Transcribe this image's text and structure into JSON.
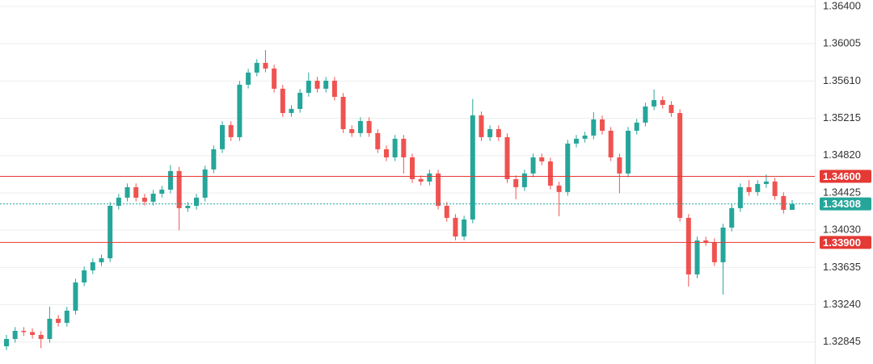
{
  "chart_data": {
    "type": "candlestick",
    "ylim": [
      1.32612,
      1.36468
    ],
    "yticks": [
      {
        "value": 1.364,
        "label": "1.36400"
      },
      1.36005,
      {
        "value": 1.3561,
        "label": "1.35610"
      },
      1.35215,
      {
        "value": 1.3482,
        "label": "1.34820"
      },
      1.34425,
      {
        "value": 1.3403,
        "label": "1.34030"
      },
      1.33635,
      {
        "value": 1.3324,
        "label": "1.33240"
      },
      1.32845
    ],
    "grid": true,
    "up_color": "#26a69a",
    "down_color": "#ef5350",
    "open": [
      1.328,
      1.32877,
      1.32963,
      1.3295,
      1.3292,
      1.32877,
      1.33091,
      1.33048,
      1.33177,
      1.33476,
      1.33604,
      1.3369,
      1.33732,
      1.34288,
      1.34374,
      1.34485,
      1.34374,
      1.34331,
      1.34416,
      1.34459,
      1.34656,
      1.34263,
      1.34288,
      1.34374,
      1.34673,
      1.34887,
      1.35143,
      1.35015,
      1.35571,
      1.35699,
      1.35802,
      1.35742,
      1.35528,
      1.35271,
      1.35314,
      1.35485,
      1.35613,
      1.35528,
      1.35613,
      1.35442,
      1.351,
      1.35058,
      1.35186,
      1.35058,
      1.34887,
      1.34801,
      1.34998,
      1.34801,
      1.3457,
      1.34545,
      1.3463,
      1.34288,
      1.3416,
      1.33963,
      1.34143,
      1.35246,
      1.35015,
      1.351,
      1.35015,
      1.3457,
      1.34485,
      1.3463,
      1.34801,
      1.34758,
      1.34502,
      1.34434,
      1.34947,
      1.34998,
      1.35032,
      1.35203,
      1.35083,
      1.34801,
      1.3463,
      1.35083,
      1.35169,
      1.3534,
      1.35408,
      1.35357,
      1.35271,
      1.3416,
      1.33561,
      1.33921,
      1.33903,
      1.3369,
      1.34057,
      1.34263,
      1.34485,
      1.34434,
      1.34519,
      1.34545,
      1.34391,
      1.34245
    ],
    "high": [
      1.3292,
      1.33003,
      1.33003,
      1.3299,
      1.3296,
      1.3322,
      1.33131,
      1.33217,
      1.33516,
      1.33644,
      1.3373,
      1.33772,
      1.34328,
      1.34414,
      1.34525,
      1.34525,
      1.34414,
      1.34456,
      1.34499,
      1.3472,
      1.347,
      1.34328,
      1.34414,
      1.34713,
      1.34927,
      1.35183,
      1.35183,
      1.35611,
      1.35739,
      1.35842,
      1.35938,
      1.35782,
      1.35568,
      1.35354,
      1.35525,
      1.357,
      1.35653,
      1.35653,
      1.35653,
      1.35482,
      1.3514,
      1.35226,
      1.35226,
      1.35098,
      1.34927,
      1.35038,
      1.35038,
      1.34841,
      1.3461,
      1.3467,
      1.3467,
      1.34328,
      1.342,
      1.34183,
      1.3542,
      1.35286,
      1.3514,
      1.3514,
      1.35055,
      1.3461,
      1.3467,
      1.34841,
      1.34841,
      1.34798,
      1.34542,
      1.34987,
      1.35038,
      1.35072,
      1.3528,
      1.35243,
      1.35123,
      1.34841,
      1.35123,
      1.35209,
      1.3538,
      1.3552,
      1.35448,
      1.35397,
      1.35311,
      1.342,
      1.33961,
      1.33961,
      1.33943,
      1.34097,
      1.34303,
      1.34525,
      1.3456,
      1.34559,
      1.3462,
      1.34585,
      1.34431,
      1.34348
    ],
    "low": [
      1.3276,
      1.32837,
      1.3291,
      1.3288,
      1.3278,
      1.32837,
      1.33008,
      1.33008,
      1.33137,
      1.33436,
      1.33564,
      1.3365,
      1.33692,
      1.34248,
      1.34334,
      1.34334,
      1.34291,
      1.34291,
      1.34376,
      1.34419,
      1.3403,
      1.34223,
      1.34248,
      1.34334,
      1.34633,
      1.34847,
      1.34975,
      1.34975,
      1.35531,
      1.35659,
      1.35702,
      1.35488,
      1.35231,
      1.35231,
      1.35274,
      1.35445,
      1.35488,
      1.35488,
      1.35402,
      1.3506,
      1.35018,
      1.35018,
      1.35018,
      1.34847,
      1.34761,
      1.34761,
      1.3463,
      1.3453,
      1.34505,
      1.34505,
      1.34248,
      1.3412,
      1.33923,
      1.33923,
      1.34103,
      1.34975,
      1.34975,
      1.34975,
      1.3453,
      1.34357,
      1.34445,
      1.3459,
      1.34718,
      1.34462,
      1.34177,
      1.34394,
      1.34907,
      1.34958,
      1.34992,
      1.35043,
      1.34761,
      1.3442,
      1.3459,
      1.35043,
      1.35129,
      1.353,
      1.35317,
      1.35231,
      1.3412,
      1.33433,
      1.33521,
      1.33863,
      1.3365,
      1.33348,
      1.34017,
      1.34223,
      1.34394,
      1.34394,
      1.34479,
      1.34351,
      1.34205,
      1.34268
    ],
    "close": [
      1.32877,
      1.32963,
      1.3295,
      1.3292,
      1.32877,
      1.33091,
      1.33048,
      1.33177,
      1.33476,
      1.33604,
      1.3369,
      1.33732,
      1.34288,
      1.34374,
      1.34485,
      1.34374,
      1.34331,
      1.34416,
      1.34459,
      1.34656,
      1.34263,
      1.34288,
      1.34374,
      1.34673,
      1.34887,
      1.35143,
      1.35015,
      1.35571,
      1.35699,
      1.35802,
      1.35742,
      1.35528,
      1.35271,
      1.35314,
      1.35485,
      1.35613,
      1.35528,
      1.35613,
      1.35442,
      1.351,
      1.35058,
      1.35186,
      1.35058,
      1.34887,
      1.34801,
      1.34998,
      1.34801,
      1.3457,
      1.34545,
      1.3463,
      1.34288,
      1.3416,
      1.33963,
      1.34143,
      1.35246,
      1.35015,
      1.351,
      1.35015,
      1.3457,
      1.34485,
      1.3463,
      1.34801,
      1.34758,
      1.34502,
      1.34434,
      1.34947,
      1.34998,
      1.35032,
      1.35203,
      1.35083,
      1.34801,
      1.3463,
      1.35083,
      1.35169,
      1.3534,
      1.35408,
      1.35357,
      1.35271,
      1.3416,
      1.33561,
      1.33921,
      1.33903,
      1.3369,
      1.34057,
      1.34263,
      1.34485,
      1.34434,
      1.34519,
      1.34545,
      1.34391,
      1.34245,
      1.34308
    ],
    "levels": [
      {
        "value": 1.346,
        "label": "1.34600",
        "color": "#e53935"
      },
      {
        "value": 1.339,
        "label": "1.33900",
        "color": "#e53935"
      }
    ],
    "current_price": {
      "value": 1.34308,
      "label": "1.34308",
      "color": "#26a69a"
    }
  }
}
